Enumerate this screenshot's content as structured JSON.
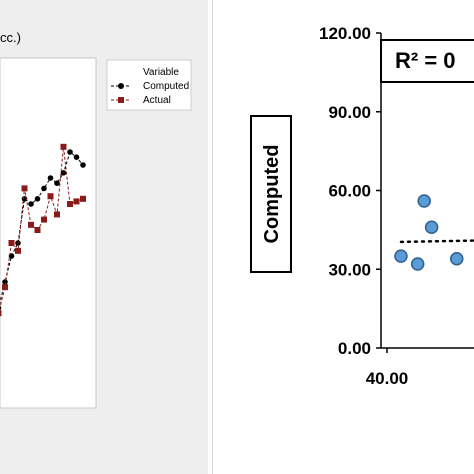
{
  "chart_data": [
    {
      "type": "line",
      "title": "cc.)",
      "legend": {
        "title": "Variable",
        "placement": "top-right",
        "entries": [
          "Computed",
          "Actual"
        ]
      },
      "series": [
        {
          "name": "Computed",
          "color": "#000000",
          "marker": "circle",
          "line": "dashed",
          "values": [
            30,
            30,
            40,
            50,
            55,
            72,
            70,
            72,
            76,
            80,
            78,
            82,
            90,
            88,
            85
          ]
        },
        {
          "name": "Actual",
          "color": "#8b1a1a",
          "marker": "square",
          "line": "dashed",
          "values": [
            28,
            28,
            38,
            55,
            52,
            76,
            62,
            60,
            64,
            73,
            66,
            92,
            70,
            71,
            72
          ]
        }
      ]
    },
    {
      "type": "scatter",
      "ylabel": "Computed",
      "y_ticks": [
        "0.00",
        "30.00",
        "60.00",
        "90.00",
        "120.00"
      ],
      "x_ticks": [
        "40.00"
      ],
      "ylim": [
        0,
        120
      ],
      "xlim": [
        40,
        60
      ],
      "annotation": "R² = 0",
      "trendline": true,
      "marker_color": "#5b9bd5",
      "points": [
        {
          "x": 41.5,
          "y": 35
        },
        {
          "x": 43.3,
          "y": 32
        },
        {
          "x": 44.0,
          "y": 56
        },
        {
          "x": 44.8,
          "y": 46
        },
        {
          "x": 47.5,
          "y": 34
        }
      ]
    }
  ]
}
